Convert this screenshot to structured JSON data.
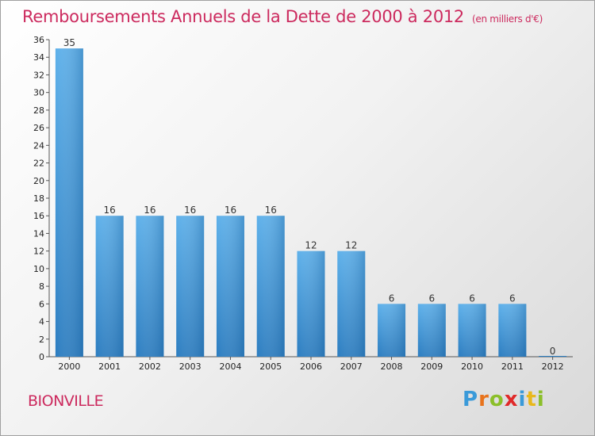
{
  "header": {
    "title": "Remboursements Annuels de la Dette de 2000 à 2012",
    "unit": "(en milliers d'€)"
  },
  "footer": {
    "commune": "BIONVILLE",
    "logo": {
      "letters": [
        "P",
        "r",
        "o",
        "x",
        "i",
        "t",
        "i"
      ],
      "colors": [
        "#3a9ad9",
        "#e8731c",
        "#8bbf2a",
        "#e02a2a",
        "#3a9ad9",
        "#e8b81c",
        "#8bbf2a"
      ]
    }
  },
  "chart_data": {
    "type": "bar",
    "categories": [
      "2000",
      "2001",
      "2002",
      "2003",
      "2004",
      "2005",
      "2006",
      "2007",
      "2008",
      "2009",
      "2010",
      "2011",
      "2012"
    ],
    "values": [
      35,
      16,
      16,
      16,
      16,
      16,
      12,
      12,
      6,
      6,
      6,
      6,
      0
    ],
    "ylim": [
      0,
      36
    ],
    "yticks": [
      0,
      2,
      4,
      6,
      8,
      10,
      12,
      14,
      16,
      18,
      20,
      22,
      24,
      26,
      28,
      30,
      32,
      34,
      36
    ],
    "bar_color": "#4a9fdc",
    "grid": false,
    "data_labels": true
  }
}
